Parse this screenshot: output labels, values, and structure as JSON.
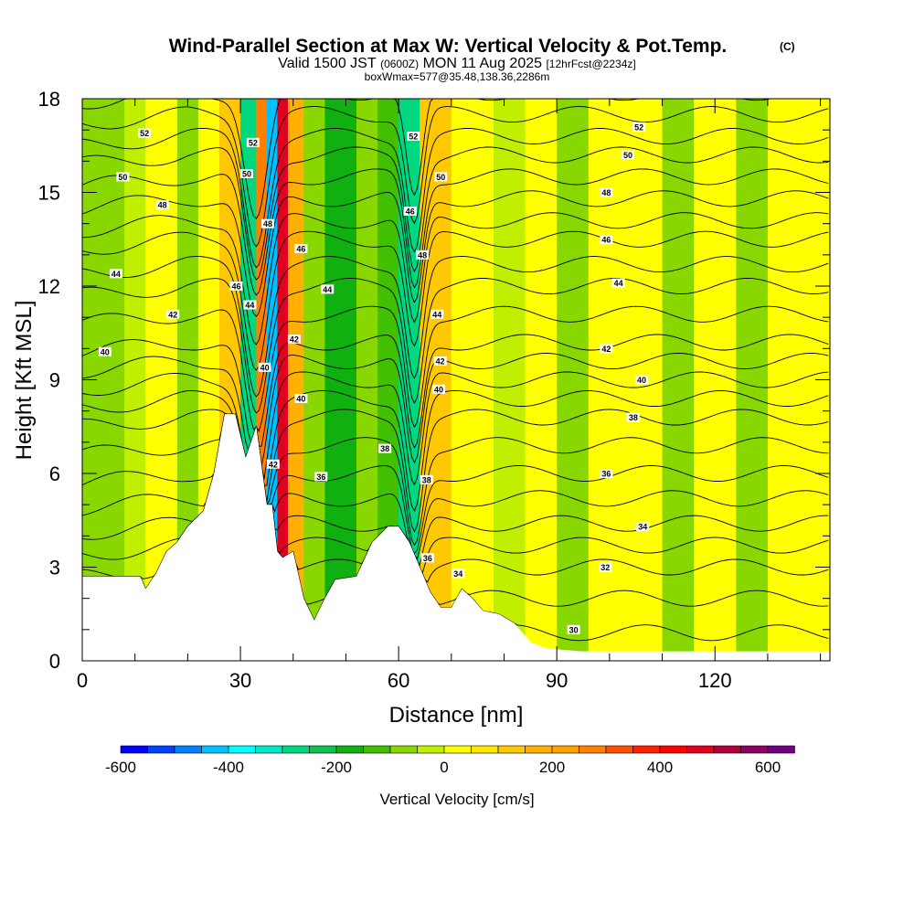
{
  "title": {
    "main": "Wind-Parallel Section at Max W: Vertical Velocity & Pot.Temp.",
    "copyright": "(C)",
    "valid_prefix": "Valid 1500 JST",
    "utc": "(0600Z)",
    "valid_date": "MON 11 Aug 2025",
    "forecast": "[12hrFcst@2234z]",
    "box_info": "boxWmax=577@35.48,138.36,2286m"
  },
  "chart_data": {
    "type": "heatmap",
    "xlabel": "Distance [nm]",
    "ylabel": "Height [Kft MSL]",
    "xlim": [
      0,
      141.8
    ],
    "ylim": [
      0,
      18
    ],
    "xticks": [
      "0",
      "30",
      "60",
      "90",
      "120"
    ],
    "xtick_values": [
      0,
      30,
      60,
      90,
      120
    ],
    "yticks": [
      "0",
      "3",
      "6",
      "9",
      "12",
      "15",
      "18"
    ],
    "ytick_values": [
      0,
      3,
      6,
      9,
      12,
      15,
      18
    ],
    "colorbar": {
      "label": "Vertical Velocity [cm/s]",
      "min": -600,
      "step": 50,
      "bins": 25,
      "tick_labels": [
        "-600",
        "-400",
        "-200",
        "0",
        "200",
        "400",
        "600"
      ],
      "tick_values": [
        -600,
        -400,
        -200,
        0,
        200,
        400,
        600
      ],
      "colors": [
        "#0000ff",
        "#0040ff",
        "#0080ff",
        "#00c0ff",
        "#00ffff",
        "#00e8c8",
        "#00d880",
        "#10c050",
        "#10b010",
        "#40c000",
        "#88d800",
        "#c0f000",
        "#ffff00",
        "#ffe800",
        "#ffc800",
        "#ffb000",
        "#ffa000",
        "#ff8000",
        "#ff5000",
        "#ff2000",
        "#ff0000",
        "#e00020",
        "#b00040",
        "#900060",
        "#700080"
      ]
    },
    "vertical_velocity_bands": [
      {
        "x": [
          0,
          8
        ],
        "w": -60
      },
      {
        "x": [
          8,
          12
        ],
        "w": -20
      },
      {
        "x": [
          12,
          18
        ],
        "w": 30
      },
      {
        "x": [
          18,
          22
        ],
        "w": -60
      },
      {
        "x": [
          22,
          26
        ],
        "w": 30
      },
      {
        "x": [
          26,
          30
        ],
        "w": 120
      },
      {
        "x": [
          30,
          33
        ],
        "w": -280
      },
      {
        "x": [
          33,
          35
        ],
        "w": 260
      },
      {
        "x": [
          35,
          37
        ],
        "w": -450
      },
      {
        "x": [
          37,
          39
        ],
        "w": 460
      },
      {
        "x": [
          39,
          42
        ],
        "w": 160
      },
      {
        "x": [
          42,
          46
        ],
        "w": -70
      },
      {
        "x": [
          46,
          52
        ],
        "w": -170
      },
      {
        "x": [
          52,
          56
        ],
        "w": -70
      },
      {
        "x": [
          56,
          60
        ],
        "w": -120
      },
      {
        "x": [
          60,
          64
        ],
        "w": -270
      },
      {
        "x": [
          64,
          70
        ],
        "w": 120
      },
      {
        "x": [
          70,
          78
        ],
        "w": 30
      },
      {
        "x": [
          78,
          84
        ],
        "w": -20
      },
      {
        "x": [
          84,
          90
        ],
        "w": 30
      },
      {
        "x": [
          90,
          96
        ],
        "w": -70
      },
      {
        "x": [
          96,
          110
        ],
        "w": 30
      },
      {
        "x": [
          110,
          116
        ],
        "w": -70
      },
      {
        "x": [
          116,
          124
        ],
        "w": 30
      },
      {
        "x": [
          124,
          130
        ],
        "w": -70
      },
      {
        "x": [
          130,
          141.8
        ],
        "w": 30
      }
    ],
    "terrain_kft": {
      "x": [
        0,
        11,
        12,
        14,
        16,
        18,
        20,
        23,
        25,
        27,
        29,
        31,
        33,
        35,
        36,
        37,
        38,
        40,
        42,
        44,
        46,
        48,
        52,
        55,
        58,
        60,
        62,
        64,
        66,
        68,
        70,
        72,
        74,
        76,
        79,
        82,
        85,
        88,
        95,
        141.8
      ],
      "h": [
        2.7,
        2.7,
        2.3,
        2.8,
        3.5,
        3.8,
        4.3,
        4.8,
        6,
        7.9,
        7.9,
        6.5,
        7.5,
        5,
        5,
        3.5,
        3.3,
        3.5,
        2,
        1.3,
        2,
        2.6,
        2.7,
        3.8,
        4.3,
        4.3,
        3.8,
        3,
        2.2,
        1.7,
        1.7,
        2.3,
        2,
        1.6,
        1.5,
        1.2,
        0.6,
        0.4,
        0.3,
        0.3
      ]
    },
    "pot_temp_contours": {
      "levels": [
        30,
        31,
        32,
        33,
        34,
        35,
        36,
        37,
        38,
        39,
        40,
        41,
        42,
        43,
        44,
        45,
        46,
        47,
        48,
        49,
        50,
        51,
        52,
        53
      ],
      "base_height_kft": [
        0.9,
        2.0,
        3.0,
        3.7,
        4.4,
        5.2,
        6.0,
        6.9,
        7.8,
        8.4,
        9.0,
        9.6,
        10.2,
        11.1,
        12.0,
        12.7,
        13.5,
        14.1,
        14.8,
        15.5,
        16.2,
        16.8,
        17.5,
        18.2
      ]
    },
    "contour_labels": [
      {
        "text": "52",
        "x": 11.8,
        "h": 16.9
      },
      {
        "text": "50",
        "x": 7.7,
        "h": 15.5
      },
      {
        "text": "48",
        "x": 15.2,
        "h": 14.6
      },
      {
        "text": "44",
        "x": 6.4,
        "h": 12.4
      },
      {
        "text": "42",
        "x": 17.2,
        "h": 11.1
      },
      {
        "text": "40",
        "x": 4.3,
        "h": 9.9
      },
      {
        "text": "52",
        "x": 32.4,
        "h": 16.6
      },
      {
        "text": "50",
        "x": 31.2,
        "h": 15.6
      },
      {
        "text": "48",
        "x": 35.2,
        "h": 14.0
      },
      {
        "text": "46",
        "x": 41.5,
        "h": 13.2
      },
      {
        "text": "46",
        "x": 29.2,
        "h": 12.0
      },
      {
        "text": "44",
        "x": 31.8,
        "h": 11.4
      },
      {
        "text": "44",
        "x": 46.5,
        "h": 11.9
      },
      {
        "text": "42",
        "x": 40.2,
        "h": 10.3
      },
      {
        "text": "40",
        "x": 34.6,
        "h": 9.4
      },
      {
        "text": "40",
        "x": 41.5,
        "h": 8.4
      },
      {
        "text": "42",
        "x": 36.2,
        "h": 6.3
      },
      {
        "text": "36",
        "x": 45.3,
        "h": 5.9
      },
      {
        "text": "52",
        "x": 62.8,
        "h": 16.8
      },
      {
        "text": "50",
        "x": 68.0,
        "h": 15.5
      },
      {
        "text": "46",
        "x": 62.2,
        "h": 14.4
      },
      {
        "text": "48",
        "x": 64.5,
        "h": 13.0
      },
      {
        "text": "44",
        "x": 67.3,
        "h": 11.1
      },
      {
        "text": "42",
        "x": 67.9,
        "h": 9.6
      },
      {
        "text": "40",
        "x": 67.6,
        "h": 8.7
      },
      {
        "text": "38",
        "x": 57.4,
        "h": 6.8
      },
      {
        "text": "38",
        "x": 65.3,
        "h": 5.8
      },
      {
        "text": "36",
        "x": 65.5,
        "h": 3.3
      },
      {
        "text": "34",
        "x": 71.3,
        "h": 2.8
      },
      {
        "text": "52",
        "x": 105.6,
        "h": 17.1
      },
      {
        "text": "50",
        "x": 103.5,
        "h": 16.2
      },
      {
        "text": "48",
        "x": 99.4,
        "h": 15.0
      },
      {
        "text": "46",
        "x": 99.4,
        "h": 13.5
      },
      {
        "text": "44",
        "x": 101.7,
        "h": 12.1
      },
      {
        "text": "42",
        "x": 99.4,
        "h": 10.0
      },
      {
        "text": "40",
        "x": 106.1,
        "h": 9.0
      },
      {
        "text": "38",
        "x": 104.5,
        "h": 7.8
      },
      {
        "text": "36",
        "x": 99.4,
        "h": 6.0
      },
      {
        "text": "34",
        "x": 106.3,
        "h": 4.3
      },
      {
        "text": "32",
        "x": 99.2,
        "h": 3.0
      },
      {
        "text": "30",
        "x": 93.2,
        "h": 1.0
      }
    ]
  }
}
